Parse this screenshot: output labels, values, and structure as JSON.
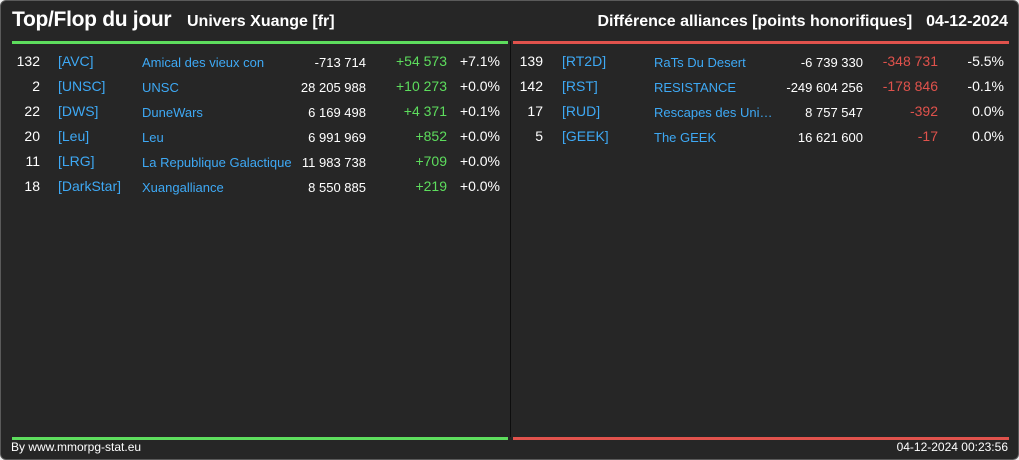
{
  "header": {
    "title": "Top/Flop du jour",
    "universe": "Univers Xuange [fr]",
    "metric": "Différence alliances [points honorifiques]",
    "date": "04-12-2024"
  },
  "top": [
    {
      "rank": "132",
      "tag": "[AVC]",
      "name": "Amical des vieux con",
      "points": "-713 714",
      "diff": "+54 573",
      "pct": "+7.1%"
    },
    {
      "rank": "2",
      "tag": "[UNSC]",
      "name": "UNSC",
      "points": "28 205 988",
      "diff": "+10 273",
      "pct": "+0.0%"
    },
    {
      "rank": "22",
      "tag": "[DWS]",
      "name": "DuneWars",
      "points": "6 169 498",
      "diff": "+4 371",
      "pct": "+0.1%"
    },
    {
      "rank": "20",
      "tag": "[Leu]",
      "name": "Leu",
      "points": "6 991 969",
      "diff": "+852",
      "pct": "+0.0%"
    },
    {
      "rank": "11",
      "tag": "[LRG]",
      "name": "La Republique Galactique",
      "points": "11 983 738",
      "diff": "+709",
      "pct": "+0.0%"
    },
    {
      "rank": "18",
      "tag": "[DarkStar]",
      "name": "Xuangalliance",
      "points": "8 550 885",
      "diff": "+219",
      "pct": "+0.0%"
    }
  ],
  "flop": [
    {
      "rank": "139",
      "tag": "[RT2D]",
      "name": "RaTs Du Desert",
      "points": "-6 739 330",
      "diff": "-348 731",
      "pct": "-5.5%"
    },
    {
      "rank": "142",
      "tag": "[RST]",
      "name": "RESISTANCE",
      "points": "-249 604 256",
      "diff": "-178 846",
      "pct": "-0.1%"
    },
    {
      "rank": "17",
      "tag": "[RUD]",
      "name": "Rescapes des Univ...",
      "points": "8 757 547",
      "diff": "-392",
      "pct": "0.0%"
    },
    {
      "rank": "5",
      "tag": "[GEEK]",
      "name": "The GEEK",
      "points": "16 621 600",
      "diff": "-17",
      "pct": "0.0%"
    }
  ],
  "footer": {
    "credit": "By www.mmorpg-stat.eu",
    "timestamp": "04-12-2024 00:23:56"
  },
  "colors": {
    "background": "#262626",
    "gain": "#5ddd5d",
    "loss": "#e0524c",
    "link": "#3ea9f5"
  }
}
